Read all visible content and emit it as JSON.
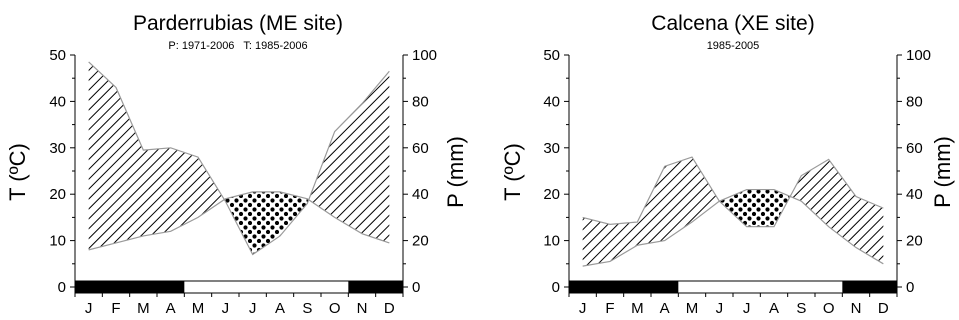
{
  "chart_data": [
    {
      "type": "area",
      "title": "Parderrubias (ME site)",
      "subtitle": "P: 1971-2006   T: 1985-2006",
      "ylabel_left": "T (ºC)",
      "ylabel_right": "P (mm)",
      "categories": [
        "J",
        "F",
        "M",
        "A",
        "M",
        "J",
        "J",
        "A",
        "S",
        "O",
        "N",
        "D"
      ],
      "ylim_left": [
        0,
        50
      ],
      "ylim_right": [
        0,
        100
      ],
      "yticks_left": [
        "0",
        "10",
        "20",
        "30",
        "40",
        "50"
      ],
      "yticks_right": [
        "0",
        "20",
        "40",
        "60",
        "80",
        "100"
      ],
      "series": [
        {
          "axis": "right",
          "values": [
            97,
            86,
            59,
            60,
            56,
            37,
            14,
            22,
            36,
            67,
            79,
            93
          ]
        },
        {
          "axis": "left",
          "values": [
            8,
            9.5,
            11,
            12,
            15,
            19,
            20.5,
            20.5,
            19,
            15,
            11.5,
            9.5
          ]
        }
      ],
      "dry_season_months": [
        "J",
        "A"
      ],
      "season_bar": [
        1,
        1,
        1,
        1,
        0,
        0,
        0,
        0,
        0,
        0,
        1,
        1
      ]
    },
    {
      "type": "area",
      "title": "Calcena (XE site)",
      "subtitle": "1985-2005",
      "ylabel_left": "T (ºC)",
      "ylabel_right": "P (mm)",
      "categories": [
        "J",
        "F",
        "M",
        "A",
        "M",
        "J",
        "J",
        "A",
        "S",
        "O",
        "N",
        "D"
      ],
      "ylim_left": [
        0,
        50
      ],
      "ylim_right": [
        0,
        100
      ],
      "yticks_left": [
        "0",
        "10",
        "20",
        "30",
        "40",
        "50"
      ],
      "yticks_right": [
        "0",
        "20",
        "40",
        "60",
        "80",
        "100"
      ],
      "series": [
        {
          "axis": "right",
          "values": [
            30,
            27,
            28,
            52,
            56,
            37,
            26,
            26,
            48,
            55,
            39,
            34
          ]
        },
        {
          "axis": "left",
          "values": [
            4.5,
            5.5,
            9,
            10,
            14,
            18.5,
            21,
            21,
            18.5,
            13,
            8.5,
            5
          ]
        }
      ],
      "dry_season_months": [
        "J",
        "A"
      ],
      "season_bar": [
        1,
        1,
        1,
        1,
        0,
        0,
        0,
        0,
        0,
        0,
        1,
        1
      ]
    }
  ]
}
